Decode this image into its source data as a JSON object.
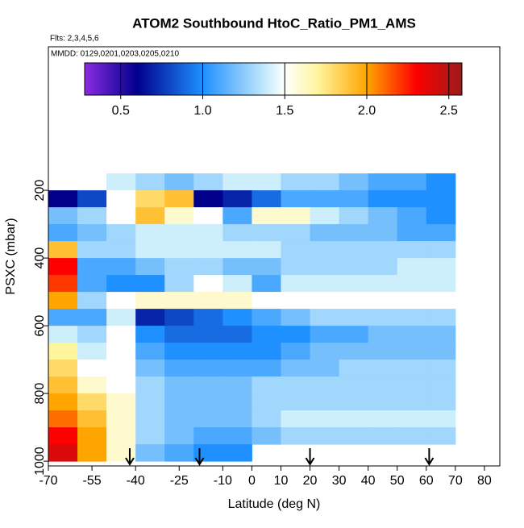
{
  "chart_data": {
    "type": "heatmap",
    "title": "ATOM2 Southbound HtoC_Ratio_PM1_AMS",
    "flights": "Flts: 2,3,4,5,6",
    "dates": "MMDD: 0129,0201,0203,0205,0210",
    "x_label": "Latitude (deg N)",
    "y_label": "PSXC (mbar)",
    "xlim": [
      -70,
      85.3
    ],
    "ylim": [
      1014,
      -224
    ],
    "xticks": [
      -70,
      -55,
      -40,
      -25,
      -10,
      0,
      10,
      20,
      30,
      40,
      50,
      60,
      70,
      80
    ],
    "yticks": [
      200,
      400,
      600,
      800,
      1000
    ],
    "x_edges": [
      -70,
      -60,
      -50,
      -40,
      -30,
      -20,
      -10,
      0,
      10,
      20,
      30,
      40,
      50,
      60,
      70
    ],
    "y_edges": [
      150,
      200,
      250,
      300,
      350,
      400,
      450,
      500,
      550,
      600,
      650,
      700,
      750,
      800,
      850,
      900,
      950,
      1000
    ],
    "z": [
      [
        null,
        null,
        1.4,
        1.3,
        1.2,
        1.3,
        1.4,
        1.4,
        1.3,
        1.3,
        1.2,
        1.1,
        1.1,
        1.0
      ],
      [
        0.6,
        0.8,
        1.5,
        1.8,
        1.9,
        0.6,
        0.7,
        0.9,
        1.1,
        1.1,
        1.1,
        1.0,
        1.0,
        1.0
      ],
      [
        1.2,
        1.3,
        1.5,
        1.9,
        1.6,
        1.5,
        1.1,
        1.6,
        1.6,
        1.4,
        1.3,
        1.2,
        1.1,
        1.0
      ],
      [
        1.1,
        1.2,
        1.3,
        1.4,
        1.4,
        1.4,
        1.3,
        1.3,
        1.3,
        1.2,
        1.2,
        1.2,
        1.1,
        1.1
      ],
      [
        1.9,
        1.3,
        1.3,
        1.4,
        1.4,
        1.4,
        1.4,
        1.4,
        1.3,
        1.3,
        1.3,
        1.3,
        1.3,
        1.3
      ],
      [
        2.3,
        1.1,
        1.1,
        1.2,
        1.3,
        1.3,
        1.2,
        1.2,
        1.3,
        1.3,
        1.3,
        1.3,
        1.4,
        1.4
      ],
      [
        2.2,
        1.1,
        1.0,
        1.0,
        1.3,
        1.5,
        1.4,
        1.1,
        1.4,
        1.4,
        1.4,
        1.4,
        1.4,
        1.4
      ],
      [
        2.0,
        1.3,
        1.5,
        1.6,
        1.6,
        1.6,
        1.6,
        1.5,
        1.5,
        1.5,
        1.5,
        1.5,
        1.5,
        1.5
      ],
      [
        1.1,
        1.1,
        1.4,
        0.7,
        0.8,
        0.9,
        1.0,
        1.1,
        1.2,
        1.3,
        1.3,
        1.3,
        1.3,
        1.3
      ],
      [
        1.4,
        1.3,
        1.5,
        1.0,
        0.9,
        0.9,
        0.9,
        1.0,
        1.0,
        1.1,
        1.1,
        1.2,
        1.2,
        1.2
      ],
      [
        1.7,
        1.4,
        1.5,
        1.1,
        1.0,
        1.0,
        1.0,
        1.0,
        1.1,
        1.2,
        1.2,
        1.2,
        1.2,
        1.2
      ],
      [
        1.8,
        1.5,
        1.5,
        1.2,
        1.1,
        1.1,
        1.1,
        1.1,
        1.2,
        1.2,
        1.3,
        1.3,
        1.3,
        1.3
      ],
      [
        1.9,
        1.6,
        1.5,
        1.3,
        1.2,
        1.2,
        1.2,
        1.3,
        1.3,
        1.3,
        1.3,
        1.3,
        1.3,
        1.3
      ],
      [
        2.0,
        1.8,
        1.6,
        1.3,
        1.2,
        1.2,
        1.2,
        1.3,
        1.3,
        1.3,
        1.3,
        1.3,
        1.3,
        1.3
      ],
      [
        2.1,
        1.9,
        1.6,
        1.3,
        1.2,
        1.2,
        1.2,
        1.3,
        1.4,
        1.4,
        1.4,
        1.4,
        1.4,
        1.4
      ],
      [
        2.3,
        2.0,
        1.6,
        1.3,
        1.2,
        1.1,
        1.1,
        1.2,
        1.3,
        1.3,
        1.3,
        1.3,
        1.3,
        1.3
      ],
      [
        2.4,
        2.0,
        1.6,
        1.2,
        1.1,
        1.0,
        1.0,
        null,
        null,
        null,
        null,
        null,
        null,
        null
      ]
    ],
    "colorscale": [
      [
        0.28,
        "#8a2be2"
      ],
      [
        0.6,
        "#00008b"
      ],
      [
        1.0,
        "#1e90ff"
      ],
      [
        1.4,
        "#cdeefb"
      ],
      [
        1.5,
        "#ffffff"
      ],
      [
        1.7,
        "#fff59d"
      ],
      [
        2.0,
        "#ffa500"
      ],
      [
        2.3,
        "#ff0000"
      ],
      [
        2.58,
        "#9b1b1b"
      ]
    ],
    "colorbar_ticks": [
      0.5,
      {
        "value": 1.0,
        "label": "1.0"
      },
      1.5,
      {
        "value": 2.0,
        "label": "2.0"
      },
      2.5
    ],
    "arrows": [
      -42,
      -18,
      20,
      61
    ]
  }
}
